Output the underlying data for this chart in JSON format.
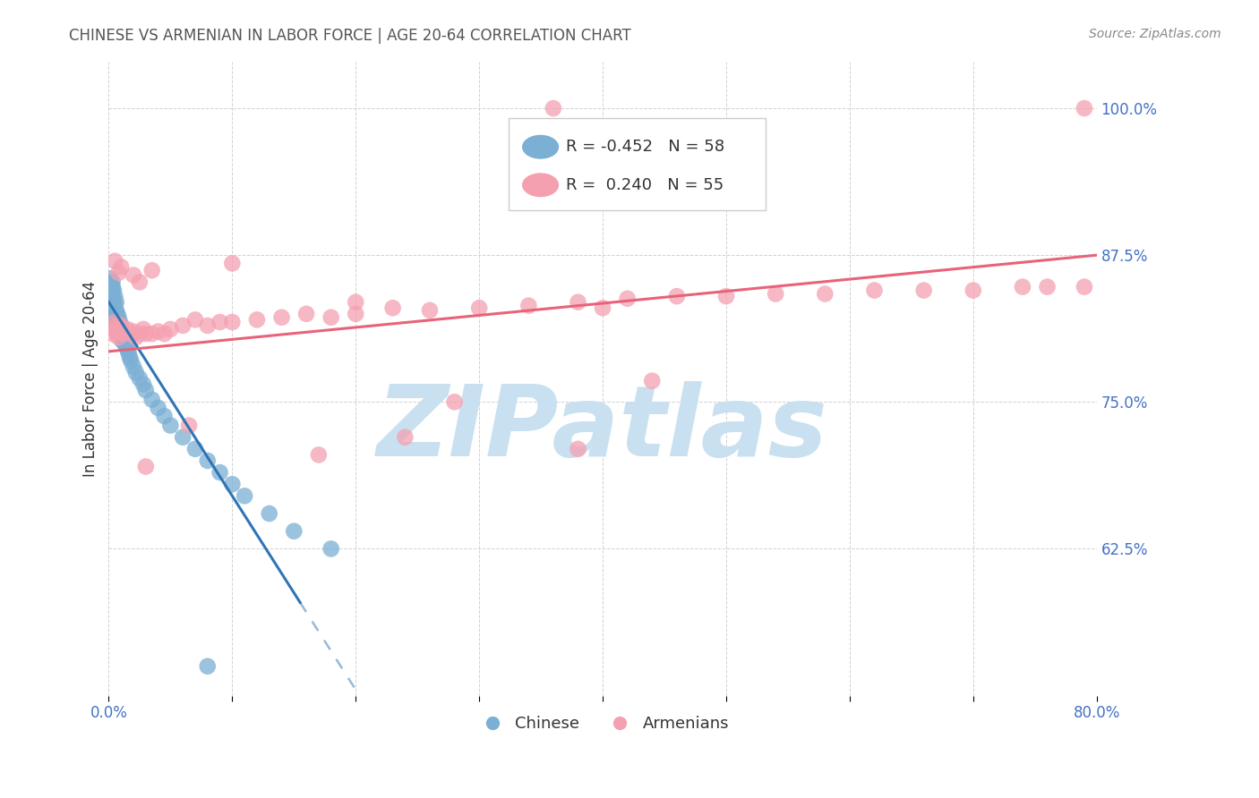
{
  "title": "CHINESE VS ARMENIAN IN LABOR FORCE | AGE 20-64 CORRELATION CHART",
  "source": "Source: ZipAtlas.com",
  "ylabel": "In Labor Force | Age 20-64",
  "xlim": [
    0.0,
    0.8
  ],
  "ylim": [
    0.5,
    1.04
  ],
  "yticks": [
    0.625,
    0.75,
    0.875,
    1.0
  ],
  "ytick_labels": [
    "62.5%",
    "75.0%",
    "87.5%",
    "100.0%"
  ],
  "xticks": [
    0.0,
    0.1,
    0.2,
    0.3,
    0.4,
    0.5,
    0.6,
    0.7,
    0.8
  ],
  "xtick_labels": [
    "0.0%",
    "",
    "",
    "",
    "",
    "",
    "",
    "",
    "80.0%"
  ],
  "chinese_color": "#7BAFD4",
  "armenian_color": "#F4A0B0",
  "trend_chinese_color": "#2E75B6",
  "trend_armenian_color": "#E8637A",
  "watermark": "ZIPatlas",
  "watermark_color": "#C8E0F0",
  "legend_r_chinese": "-0.452",
  "legend_n_chinese": "58",
  "legend_r_armenian": "0.240",
  "legend_n_armenian": "55",
  "chinese_x": [
    0.001,
    0.001,
    0.002,
    0.002,
    0.002,
    0.003,
    0.003,
    0.003,
    0.003,
    0.004,
    0.004,
    0.004,
    0.005,
    0.005,
    0.005,
    0.005,
    0.006,
    0.006,
    0.006,
    0.006,
    0.007,
    0.007,
    0.007,
    0.008,
    0.008,
    0.008,
    0.009,
    0.009,
    0.01,
    0.01,
    0.011,
    0.011,
    0.012,
    0.013,
    0.014,
    0.015,
    0.016,
    0.017,
    0.018,
    0.02,
    0.022,
    0.025,
    0.028,
    0.03,
    0.035,
    0.04,
    0.045,
    0.05,
    0.06,
    0.07,
    0.08,
    0.09,
    0.1,
    0.11,
    0.13,
    0.15,
    0.18,
    0.08
  ],
  "chinese_y": [
    0.855,
    0.84,
    0.85,
    0.845,
    0.835,
    0.848,
    0.852,
    0.84,
    0.83,
    0.845,
    0.835,
    0.828,
    0.84,
    0.832,
    0.825,
    0.818,
    0.835,
    0.828,
    0.82,
    0.815,
    0.825,
    0.818,
    0.81,
    0.822,
    0.815,
    0.808,
    0.818,
    0.81,
    0.815,
    0.808,
    0.81,
    0.802,
    0.805,
    0.8,
    0.798,
    0.795,
    0.792,
    0.788,
    0.785,
    0.78,
    0.775,
    0.77,
    0.765,
    0.76,
    0.752,
    0.745,
    0.738,
    0.73,
    0.72,
    0.71,
    0.7,
    0.69,
    0.68,
    0.67,
    0.655,
    0.64,
    0.625,
    0.525
  ],
  "armenian_x": [
    0.003,
    0.004,
    0.005,
    0.006,
    0.007,
    0.008,
    0.009,
    0.01,
    0.012,
    0.015,
    0.018,
    0.02,
    0.022,
    0.025,
    0.028,
    0.03,
    0.035,
    0.04,
    0.045,
    0.05,
    0.06,
    0.07,
    0.08,
    0.09,
    0.1,
    0.12,
    0.14,
    0.16,
    0.18,
    0.2,
    0.23,
    0.26,
    0.3,
    0.34,
    0.38,
    0.42,
    0.46,
    0.5,
    0.54,
    0.58,
    0.62,
    0.66,
    0.7,
    0.74,
    0.76,
    0.79,
    0.36,
    0.79,
    0.065,
    0.38,
    0.28,
    0.03,
    0.17,
    0.24,
    0.44
  ],
  "armenian_y": [
    0.808,
    0.812,
    0.818,
    0.81,
    0.815,
    0.805,
    0.81,
    0.815,
    0.808,
    0.812,
    0.808,
    0.81,
    0.805,
    0.808,
    0.812,
    0.808,
    0.808,
    0.81,
    0.808,
    0.812,
    0.815,
    0.82,
    0.815,
    0.818,
    0.818,
    0.82,
    0.822,
    0.825,
    0.822,
    0.825,
    0.83,
    0.828,
    0.83,
    0.832,
    0.835,
    0.838,
    0.84,
    0.84,
    0.842,
    0.842,
    0.845,
    0.845,
    0.845,
    0.848,
    0.848,
    0.848,
    1.0,
    1.0,
    0.73,
    0.71,
    0.75,
    0.695,
    0.705,
    0.72,
    0.768
  ],
  "armenian_extra_x": [
    0.005,
    0.008,
    0.01,
    0.02,
    0.025,
    0.035,
    0.1,
    0.2,
    0.4
  ],
  "armenian_extra_y": [
    0.87,
    0.86,
    0.865,
    0.858,
    0.852,
    0.862,
    0.868,
    0.835,
    0.83
  ],
  "ch_trend_x0": 0.0,
  "ch_trend_y0": 0.835,
  "ch_trend_x1_solid": 0.155,
  "ch_trend_slope": -1.65,
  "ch_trend_x1_dash": 0.32,
  "ar_trend_x0": 0.0,
  "ar_trend_y0": 0.793,
  "ar_trend_x1": 0.8,
  "ar_trend_y1": 0.875
}
